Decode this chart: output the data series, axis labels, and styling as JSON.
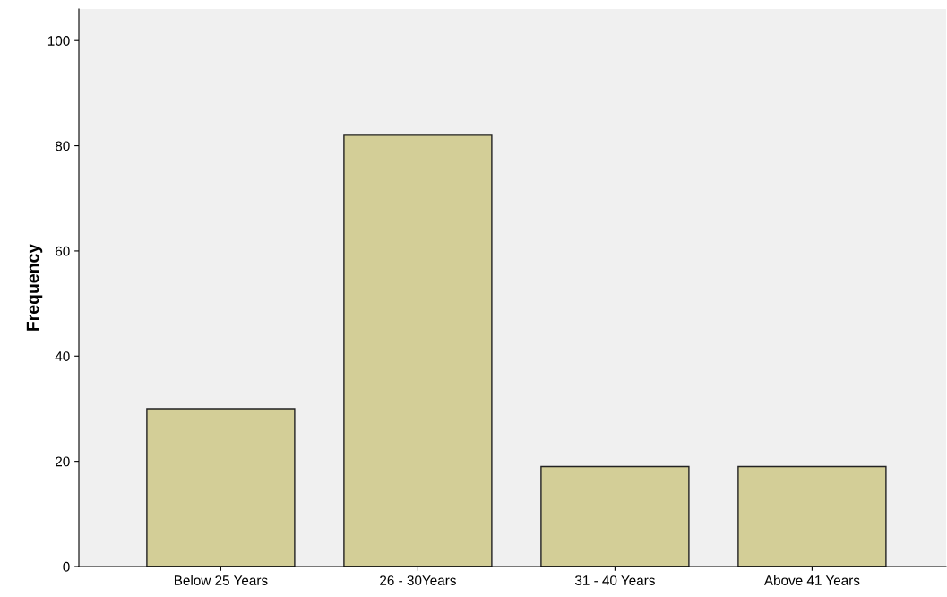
{
  "chart_data": {
    "type": "bar",
    "ylabel": "Frequency",
    "categories": [
      "Below 25 Years",
      "26 - 30Years",
      "31 - 40 Years",
      "Above 41 Years"
    ],
    "values": [
      30,
      82,
      19,
      19
    ],
    "color": "#d3ce97",
    "ylim": [
      0,
      106
    ],
    "yticks": [
      0,
      20,
      40,
      60,
      80,
      100
    ],
    "grid": false,
    "legend": false
  }
}
